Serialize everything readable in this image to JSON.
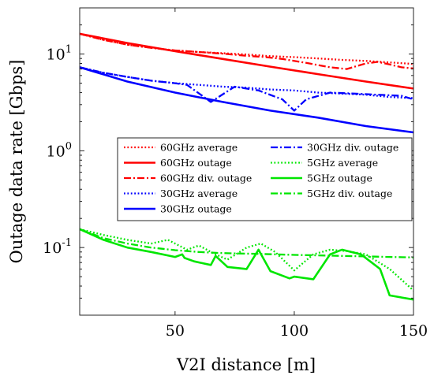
{
  "chart_data": {
    "type": "line",
    "xlabel": "V2I distance [m]",
    "ylabel": "Outage data rate [Gbps]",
    "xlim": [
      10,
      150
    ],
    "ylim": [
      0.02,
      30
    ],
    "yscale": "log",
    "grid": false,
    "legend_position": "center-right",
    "x_ticks": [
      {
        "value": 50,
        "label": "50"
      },
      {
        "value": 100,
        "label": "100"
      },
      {
        "value": 150,
        "label": "150"
      }
    ],
    "y_ticks": [
      {
        "value": 0.1,
        "base": "10",
        "exp": "-1"
      },
      {
        "value": 1,
        "base": "10",
        "exp": "0"
      },
      {
        "value": 10,
        "base": "10",
        "exp": "1"
      }
    ],
    "series": [
      {
        "name": "60GHz average",
        "color": "#ff0000",
        "style": "dotted",
        "x": [
          10,
          20,
          30,
          40,
          50,
          60,
          70,
          80,
          90,
          100,
          110,
          120,
          130,
          140,
          150
        ],
        "y": [
          16.2,
          14.0,
          12.5,
          11.6,
          10.9,
          10.5,
          10.2,
          9.9,
          9.5,
          9.3,
          9.0,
          8.7,
          8.5,
          8.2,
          7.9
        ]
      },
      {
        "name": "60GHz outage",
        "color": "#ff0000",
        "style": "solid",
        "x": [
          10,
          30,
          50,
          70,
          90,
          110,
          130,
          150
        ],
        "y": [
          16.2,
          13.0,
          10.7,
          8.9,
          7.4,
          6.2,
          5.2,
          4.4
        ]
      },
      {
        "name": "60GHz div. outage",
        "color": "#ff0000",
        "style": "dashdot",
        "x": [
          10,
          20,
          30,
          40,
          50,
          60,
          70,
          80,
          88,
          95,
          105,
          115,
          122,
          130,
          135,
          140,
          145,
          150
        ],
        "y": [
          16.2,
          14.0,
          12.5,
          11.6,
          10.9,
          10.5,
          10.1,
          9.6,
          9.3,
          8.9,
          8.1,
          7.3,
          7.0,
          8.0,
          8.3,
          7.8,
          7.3,
          7.1
        ]
      },
      {
        "name": "30GHz average",
        "color": "#0000ff",
        "style": "dotted",
        "x": [
          10,
          20,
          30,
          40,
          50,
          60,
          70,
          80,
          90,
          100,
          110,
          120,
          130,
          140,
          150
        ],
        "y": [
          7.3,
          6.4,
          5.8,
          5.3,
          5.0,
          4.8,
          4.6,
          4.5,
          4.3,
          4.2,
          4.0,
          3.9,
          3.8,
          3.6,
          3.5
        ]
      },
      {
        "name": "30GHz outage",
        "color": "#0000ff",
        "style": "solid",
        "x": [
          10,
          30,
          50,
          70,
          90,
          110,
          130,
          150
        ],
        "y": [
          7.3,
          5.2,
          4.0,
          3.2,
          2.6,
          2.2,
          1.8,
          1.55
        ]
      },
      {
        "name": "30GHz div. outage",
        "color": "#0000ff",
        "style": "dashdot",
        "x": [
          10,
          20,
          30,
          40,
          50,
          55,
          65,
          75,
          85,
          95,
          100,
          105,
          115,
          125,
          135,
          145,
          150
        ],
        "y": [
          7.3,
          6.4,
          5.8,
          5.3,
          5.0,
          4.8,
          3.2,
          4.6,
          4.2,
          3.4,
          2.6,
          3.4,
          4.0,
          3.9,
          3.8,
          3.7,
          3.4
        ]
      },
      {
        "name": "5GHz average",
        "color": "#00e600",
        "style": "dotted",
        "x": [
          10,
          20,
          30,
          40,
          47,
          55,
          60,
          67,
          72,
          80,
          86,
          92,
          100,
          108,
          115,
          122,
          130,
          140,
          150
        ],
        "y": [
          0.155,
          0.135,
          0.12,
          0.11,
          0.12,
          0.095,
          0.105,
          0.085,
          0.075,
          0.1,
          0.11,
          0.09,
          0.058,
          0.085,
          0.095,
          0.092,
          0.085,
          0.06,
          0.036
        ]
      },
      {
        "name": "5GHz outage",
        "color": "#00e600",
        "style": "solid",
        "x": [
          10,
          20,
          30,
          40,
          50,
          53,
          54,
          58,
          65,
          67,
          72,
          80,
          85,
          90,
          98,
          100,
          108,
          115,
          120,
          128,
          136,
          140,
          150
        ],
        "y": [
          0.155,
          0.12,
          0.1,
          0.09,
          0.08,
          0.085,
          0.078,
          0.072,
          0.066,
          0.082,
          0.063,
          0.06,
          0.095,
          0.057,
          0.048,
          0.05,
          0.047,
          0.085,
          0.095,
          0.085,
          0.06,
          0.032,
          0.029
        ]
      },
      {
        "name": "5GHz div. outage",
        "color": "#00e600",
        "style": "dashdot",
        "x": [
          10,
          20,
          30,
          40,
          50,
          60,
          68,
          75,
          85,
          92,
          100,
          110,
          120,
          130,
          140,
          150
        ],
        "y": [
          0.155,
          0.125,
          0.11,
          0.1,
          0.094,
          0.09,
          0.088,
          0.087,
          0.086,
          0.085,
          0.084,
          0.083,
          0.082,
          0.081,
          0.08,
          0.079
        ]
      }
    ]
  }
}
